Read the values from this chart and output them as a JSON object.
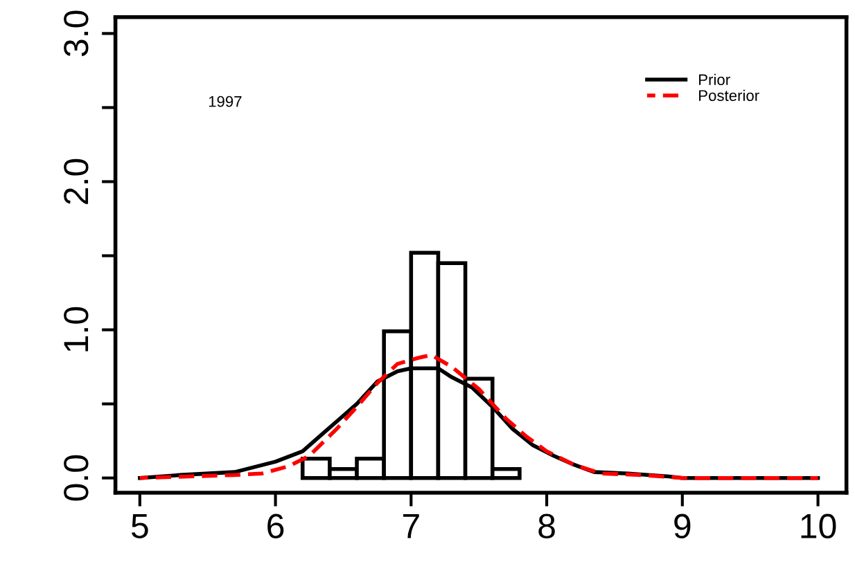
{
  "chart_data": {
    "type": "histogram",
    "bins": [
      6.2,
      6.4,
      6.6,
      6.8,
      7.0,
      7.2,
      7.4,
      7.6,
      7.8
    ],
    "values": [
      0.13,
      0.06,
      0.13,
      0.99,
      1.52,
      1.45,
      0.67,
      0.06
    ],
    "color": "#ffffff",
    "series": [
      {
        "name": "Prior",
        "type": "line",
        "color": "#000000",
        "line_style": "solid",
        "x": [
          5.0,
          5.3,
          5.7,
          6.0,
          6.2,
          6.35,
          6.5,
          6.6,
          6.75,
          6.9,
          7.0,
          7.2,
          7.3,
          7.45,
          7.6,
          7.75,
          7.9,
          8.05,
          8.2,
          8.35,
          8.6,
          8.9,
          9.0,
          10.0
        ],
        "values": [
          0,
          0.02,
          0.04,
          0.11,
          0.18,
          0.3,
          0.42,
          0.5,
          0.65,
          0.72,
          0.74,
          0.74,
          0.68,
          0.61,
          0.48,
          0.33,
          0.22,
          0.15,
          0.09,
          0.04,
          0.03,
          0.01,
          0,
          0
        ]
      },
      {
        "name": "Posterior",
        "type": "line",
        "color": "#ff0000",
        "line_style": "dashed",
        "x": [
          5.0,
          5.7,
          5.9,
          6.1,
          6.25,
          6.45,
          6.6,
          6.75,
          6.9,
          7.05,
          7.15,
          7.3,
          7.5,
          7.7,
          7.85,
          8.0,
          8.2,
          8.4,
          8.7,
          9.0,
          10.0
        ],
        "values": [
          0,
          0.02,
          0.03,
          0.08,
          0.15,
          0.33,
          0.48,
          0.64,
          0.77,
          0.81,
          0.83,
          0.75,
          0.6,
          0.4,
          0.28,
          0.18,
          0.09,
          0.03,
          0.02,
          0,
          0
        ]
      }
    ],
    "annotations": [
      "1997"
    ],
    "xlim": [
      4.82,
      10.21
    ],
    "xticks": [
      5,
      6,
      7,
      8,
      9,
      10
    ],
    "ylim": [
      -0.1,
      3.11
    ],
    "yticks": [
      {
        "value": 0,
        "label": "0.0"
      },
      {
        "value": 0.5,
        "label": null
      },
      {
        "value": 1,
        "label": "1.0"
      },
      {
        "value": 1.5,
        "label": null
      },
      {
        "value": 2,
        "label": "2.0"
      },
      {
        "value": 2.5,
        "label": null
      },
      {
        "value": 3,
        "label": "3.0"
      }
    ],
    "legend": "top right",
    "grid": false
  }
}
